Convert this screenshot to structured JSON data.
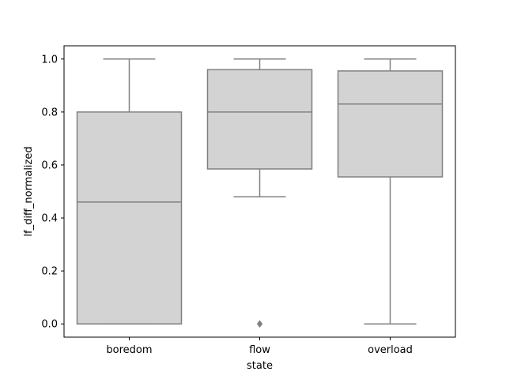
{
  "chart_data": {
    "type": "box",
    "title": "",
    "xlabel": "state",
    "ylabel": "lf_diff_normalized",
    "categories": [
      "boredom",
      "flow",
      "overload"
    ],
    "boxes": [
      {
        "category": "boredom",
        "whisker_low": 0.0,
        "q1": 0.0,
        "median": 0.46,
        "q3": 0.8,
        "whisker_high": 1.0,
        "outliers": []
      },
      {
        "category": "flow",
        "whisker_low": 0.48,
        "q1": 0.585,
        "median": 0.8,
        "q3": 0.96,
        "whisker_high": 1.0,
        "outliers": [
          0.0
        ]
      },
      {
        "category": "overload",
        "whisker_low": 0.0,
        "q1": 0.555,
        "median": 0.83,
        "q3": 0.955,
        "whisker_high": 1.0,
        "outliers": []
      }
    ],
    "ylim": [
      -0.05,
      1.05
    ],
    "yticks": [
      0.0,
      0.2,
      0.4,
      0.6,
      0.8,
      1.0
    ],
    "ytick_labels": [
      "0.0",
      "0.2",
      "0.4",
      "0.6",
      "0.8",
      "1.0"
    ],
    "grid": false,
    "legend": "none",
    "colors": {
      "box_fill": "#d3d3d3",
      "box_edge": "#808080",
      "axis": "#000000",
      "background": "#ffffff"
    }
  }
}
